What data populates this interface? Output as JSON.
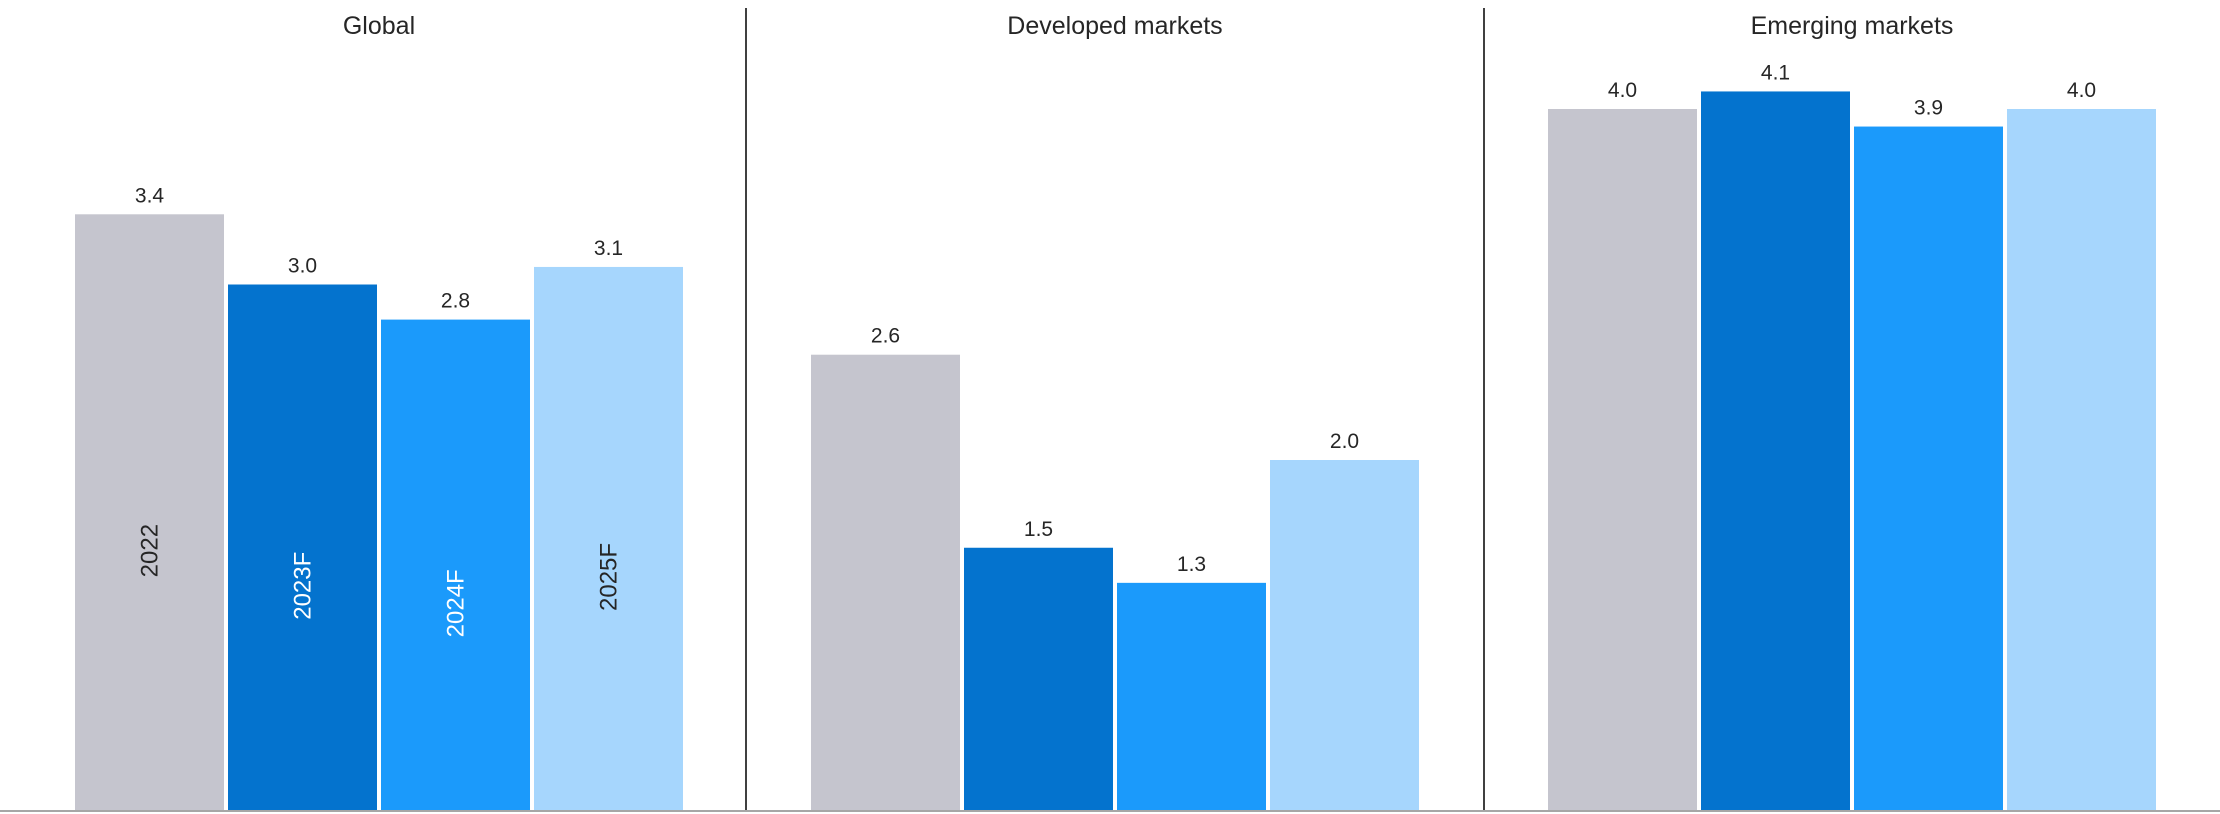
{
  "chart_data": {
    "type": "bar",
    "categories": [
      "Global",
      "Developed markets",
      "Emerging markets"
    ],
    "series": [
      {
        "name": "2022",
        "values": [
          3.4,
          2.6,
          4.0
        ],
        "color": "#C5C5CE",
        "label_color": "#262626"
      },
      {
        "name": "2023F",
        "values": [
          3.0,
          1.5,
          4.1
        ],
        "color": "#0473CE",
        "label_color": "#FFFFFF"
      },
      {
        "name": "2024F",
        "values": [
          2.8,
          1.3,
          3.9
        ],
        "color": "#1B9AFB",
        "label_color": "#FFFFFF"
      },
      {
        "name": "2025F",
        "values": [
          3.1,
          2.0,
          4.0
        ],
        "color": "#A6D6FD",
        "label_color": "#262626"
      }
    ],
    "value_labels": [
      [
        "3.4",
        "2.6",
        "4.0"
      ],
      [
        "3.0",
        "1.5",
        "4.1"
      ],
      [
        "2.8",
        "1.3",
        "3.9"
      ],
      [
        "3.1",
        "2.0",
        "4.0"
      ]
    ],
    "series_labels_in_first_panel": true,
    "title": "",
    "xlabel": "",
    "ylabel": "",
    "ylim": [
      0,
      4.2
    ],
    "grid": false,
    "legend": "none",
    "axis_color": "#A6A6A6",
    "divider_color": "#404040"
  }
}
